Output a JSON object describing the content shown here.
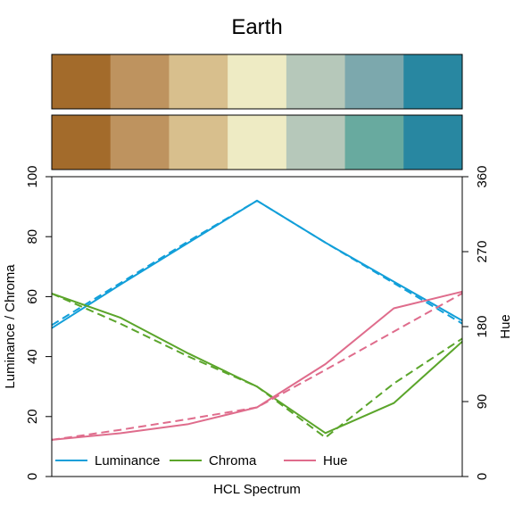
{
  "chart_data": {
    "type": "line",
    "title": "Earth",
    "xlabel": "HCL Spectrum",
    "ylabel_left": "Luminance / Chroma",
    "ylabel_right": "Hue",
    "ylim_left": [
      0,
      100
    ],
    "ylim_right": [
      0,
      360
    ],
    "yticks_left": [
      "0",
      "20",
      "40",
      "60",
      "80",
      "100"
    ],
    "yticks_right": [
      "0",
      "90",
      "180",
      "270",
      "360"
    ],
    "grid": false,
    "legend_position": "bottom",
    "palette_rows": [
      [
        "#A36B2B",
        "#BE935F",
        "#D8BF8D",
        "#EEEBC4",
        "#B6C8BA",
        "#7CA8AD",
        "#2887A1"
      ],
      [
        "#A36B2B",
        "#BE935F",
        "#D8BF8D",
        "#EEEBC4",
        "#B6C8BA",
        "#68AA9F",
        "#2887A1"
      ]
    ],
    "x": [
      0,
      1,
      2,
      3,
      4,
      5,
      6
    ],
    "series": [
      {
        "name": "Luminance",
        "axis": "left",
        "color": "#129FD9",
        "values": [
          49.5,
          64,
          78,
          92,
          78,
          65,
          52
        ],
        "trajectory": [
          50.5,
          64.5,
          78.5,
          92,
          78,
          64.5,
          51
        ]
      },
      {
        "name": "Chroma",
        "axis": "left",
        "color": "#5BA52B",
        "values": [
          61,
          53,
          41,
          30,
          14.5,
          24.5,
          45
        ],
        "trajectory": [
          61,
          51,
          40,
          30,
          13,
          31,
          46
        ]
      },
      {
        "name": "Hue",
        "axis": "right",
        "color": "#DF6C8C",
        "values": [
          44,
          52,
          63,
          83,
          135,
          202,
          222
        ],
        "trajectory": [
          44,
          56,
          69,
          83,
          128,
          174,
          220
        ]
      }
    ]
  }
}
